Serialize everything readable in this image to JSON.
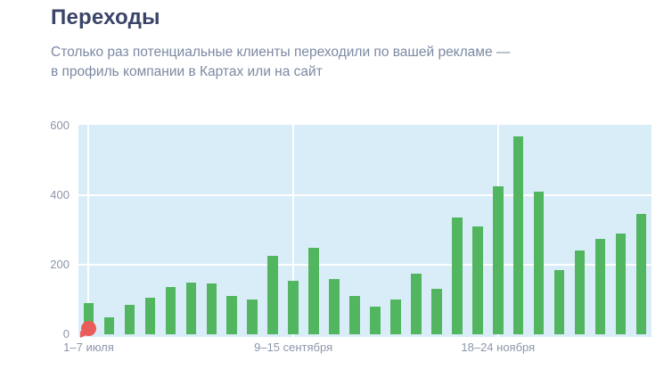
{
  "header": {
    "title": "Переходы",
    "subtitle_line1": "Столько раз потенциальные клиенты переходили по вашей рекламе —",
    "subtitle_line2": "в профиль компании в Картах или на сайт"
  },
  "chart_data": {
    "type": "bar",
    "title": "Переходы",
    "description": "Weekly count of ad clicks (transitions to company profile in Maps or to website)",
    "values": [
      90,
      50,
      85,
      105,
      135,
      150,
      145,
      110,
      100,
      225,
      155,
      250,
      160,
      110,
      80,
      100,
      175,
      130,
      335,
      310,
      425,
      570,
      410,
      185,
      240,
      275,
      290,
      345
    ],
    "y_ticks": [
      0,
      200,
      400,
      600
    ],
    "ylim": [
      0,
      600
    ],
    "x_tick_labels": [
      {
        "index": 0,
        "label": "1–7 июля"
      },
      {
        "index": 10,
        "label": "9–15 сентября"
      },
      {
        "index": 20,
        "label": "18–24 ноября"
      }
    ],
    "marker": {
      "index": 0,
      "value": 0,
      "shape": "balloon",
      "color": "#e95c5a"
    },
    "legend": "none",
    "grid": "on",
    "colors": {
      "bar": "#52b55f",
      "plot_background": "#d9edf8",
      "gridline": "#ffffff",
      "axis_text": "#8b96a9",
      "title_text": "#3b4468",
      "subtitle_text": "#7c89a3"
    }
  }
}
